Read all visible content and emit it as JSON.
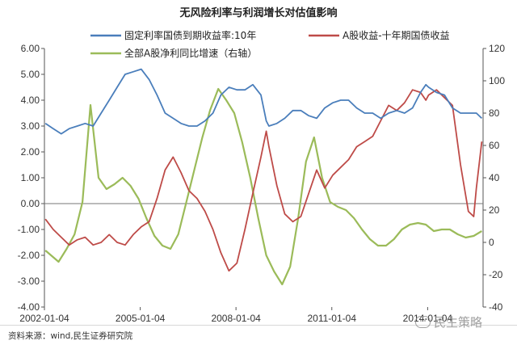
{
  "chart_data": {
    "type": "line",
    "title": "无风险利率与利润增长对估值影响",
    "x_ticks": [
      "2002-01-04",
      "2005-01-04",
      "2008-01-04",
      "2011-01-04",
      "2014-01-04"
    ],
    "xlim": [
      "2002-01-04",
      "2015-09-30"
    ],
    "left_axis": {
      "ylim": [
        -4,
        6
      ],
      "ticks": [
        "6.00",
        "5.00",
        "4.00",
        "3.00",
        "2.00",
        "1.00",
        "0.00",
        "-1.00",
        "-2.00",
        "-3.00",
        "-4.00"
      ]
    },
    "right_axis": {
      "ylim": [
        -40,
        120
      ],
      "ticks": [
        "120",
        "100",
        "80",
        "60",
        "40",
        "20",
        "0",
        "-20",
        "-40"
      ]
    },
    "legend": [
      "固定利率国债到期收益率:10年",
      "A股收益-十年期国债收益",
      "全部A股净利同比增速（右轴）"
    ],
    "series": [
      {
        "name": "固定利率国债到期收益率:10年",
        "axis": "left",
        "color": "#4a7ebb",
        "points": [
          [
            "2002-01",
            3.1
          ],
          [
            "2002-04",
            2.9
          ],
          [
            "2002-07",
            2.7
          ],
          [
            "2002-10",
            2.9
          ],
          [
            "2003-01",
            3.0
          ],
          [
            "2003-04",
            3.1
          ],
          [
            "2003-07",
            3.0
          ],
          [
            "2003-10",
            3.5
          ],
          [
            "2004-01",
            4.0
          ],
          [
            "2004-04",
            4.5
          ],
          [
            "2004-07",
            5.0
          ],
          [
            "2004-10",
            5.1
          ],
          [
            "2005-01",
            5.2
          ],
          [
            "2005-04",
            4.8
          ],
          [
            "2005-07",
            4.2
          ],
          [
            "2005-10",
            3.5
          ],
          [
            "2006-01",
            3.3
          ],
          [
            "2006-04",
            3.1
          ],
          [
            "2006-07",
            3.0
          ],
          [
            "2006-10",
            3.0
          ],
          [
            "2007-01",
            3.2
          ],
          [
            "2007-04",
            3.5
          ],
          [
            "2007-07",
            4.2
          ],
          [
            "2007-10",
            4.5
          ],
          [
            "2008-01",
            4.4
          ],
          [
            "2008-04",
            4.4
          ],
          [
            "2008-07",
            4.6
          ],
          [
            "2008-10",
            4.2
          ],
          [
            "2008-12",
            3.2
          ],
          [
            "2009-01",
            3.0
          ],
          [
            "2009-04",
            3.1
          ],
          [
            "2009-07",
            3.3
          ],
          [
            "2009-10",
            3.6
          ],
          [
            "2010-01",
            3.6
          ],
          [
            "2010-04",
            3.4
          ],
          [
            "2010-07",
            3.3
          ],
          [
            "2010-10",
            3.7
          ],
          [
            "2011-01",
            3.9
          ],
          [
            "2011-04",
            4.0
          ],
          [
            "2011-07",
            4.0
          ],
          [
            "2011-10",
            3.7
          ],
          [
            "2012-01",
            3.5
          ],
          [
            "2012-04",
            3.5
          ],
          [
            "2012-07",
            3.3
          ],
          [
            "2012-10",
            3.5
          ],
          [
            "2013-01",
            3.6
          ],
          [
            "2013-04",
            3.5
          ],
          [
            "2013-07",
            3.7
          ],
          [
            "2013-10",
            4.3
          ],
          [
            "2013-12",
            4.6
          ],
          [
            "2014-01",
            4.5
          ],
          [
            "2014-04",
            4.3
          ],
          [
            "2014-07",
            4.2
          ],
          [
            "2014-10",
            3.7
          ],
          [
            "2015-01",
            3.5
          ],
          [
            "2015-04",
            3.5
          ],
          [
            "2015-07",
            3.5
          ],
          [
            "2015-09",
            3.3
          ]
        ]
      },
      {
        "name": "A股收益-十年期国债收益",
        "axis": "left",
        "color": "#be4b48",
        "points": [
          [
            "2002-01",
            -0.6
          ],
          [
            "2002-04",
            -1.0
          ],
          [
            "2002-07",
            -1.3
          ],
          [
            "2002-10",
            -1.6
          ],
          [
            "2003-01",
            -1.4
          ],
          [
            "2003-04",
            -1.3
          ],
          [
            "2003-07",
            -1.6
          ],
          [
            "2003-10",
            -1.5
          ],
          [
            "2004-01",
            -1.2
          ],
          [
            "2004-04",
            -1.5
          ],
          [
            "2004-07",
            -1.6
          ],
          [
            "2004-10",
            -1.2
          ],
          [
            "2005-01",
            -0.9
          ],
          [
            "2005-04",
            -0.7
          ],
          [
            "2005-07",
            0.2
          ],
          [
            "2005-10",
            1.3
          ],
          [
            "2006-01",
            1.8
          ],
          [
            "2006-04",
            1.2
          ],
          [
            "2006-07",
            0.5
          ],
          [
            "2006-10",
            0.2
          ],
          [
            "2007-01",
            -0.3
          ],
          [
            "2007-04",
            -1.0
          ],
          [
            "2007-07",
            -1.9
          ],
          [
            "2007-10",
            -2.6
          ],
          [
            "2008-01",
            -2.3
          ],
          [
            "2008-04",
            -1.0
          ],
          [
            "2008-07",
            0.4
          ],
          [
            "2008-10",
            1.8
          ],
          [
            "2008-12",
            2.8
          ],
          [
            "2009-01",
            2.2
          ],
          [
            "2009-04",
            0.7
          ],
          [
            "2009-07",
            -0.4
          ],
          [
            "2009-10",
            -0.7
          ],
          [
            "2010-01",
            -0.5
          ],
          [
            "2010-04",
            0.4
          ],
          [
            "2010-07",
            1.3
          ],
          [
            "2010-10",
            0.6
          ],
          [
            "2011-01",
            1.1
          ],
          [
            "2011-04",
            1.4
          ],
          [
            "2011-07",
            1.7
          ],
          [
            "2011-10",
            2.2
          ],
          [
            "2012-01",
            2.4
          ],
          [
            "2012-04",
            2.6
          ],
          [
            "2012-07",
            3.2
          ],
          [
            "2012-10",
            3.8
          ],
          [
            "2013-01",
            3.6
          ],
          [
            "2013-04",
            3.9
          ],
          [
            "2013-07",
            4.4
          ],
          [
            "2013-10",
            4.3
          ],
          [
            "2013-12",
            4.0
          ],
          [
            "2014-01",
            4.2
          ],
          [
            "2014-04",
            4.4
          ],
          [
            "2014-07",
            4.1
          ],
          [
            "2014-10",
            3.8
          ],
          [
            "2015-01",
            1.5
          ],
          [
            "2015-04",
            -0.3
          ],
          [
            "2015-06",
            -0.5
          ],
          [
            "2015-07",
            0.6
          ],
          [
            "2015-09",
            2.4
          ]
        ]
      },
      {
        "name": "全部A股净利同比增速（右轴）",
        "axis": "right",
        "color": "#9bbb59",
        "points": [
          [
            "2002-01",
            -5
          ],
          [
            "2002-06",
            -12
          ],
          [
            "2002-09",
            -4
          ],
          [
            "2002-12",
            5
          ],
          [
            "2003-03",
            25
          ],
          [
            "2003-06",
            85
          ],
          [
            "2003-09",
            40
          ],
          [
            "2003-12",
            33
          ],
          [
            "2004-03",
            36
          ],
          [
            "2004-06",
            40
          ],
          [
            "2004-09",
            35
          ],
          [
            "2004-12",
            27
          ],
          [
            "2005-03",
            15
          ],
          [
            "2005-06",
            4
          ],
          [
            "2005-09",
            -2
          ],
          [
            "2005-12",
            -4
          ],
          [
            "2006-03",
            5
          ],
          [
            "2006-06",
            25
          ],
          [
            "2006-09",
            45
          ],
          [
            "2006-12",
            65
          ],
          [
            "2007-03",
            82
          ],
          [
            "2007-06",
            95
          ],
          [
            "2007-09",
            88
          ],
          [
            "2007-12",
            80
          ],
          [
            "2008-03",
            62
          ],
          [
            "2008-06",
            40
          ],
          [
            "2008-09",
            15
          ],
          [
            "2008-12",
            -8
          ],
          [
            "2009-03",
            -18
          ],
          [
            "2009-06",
            -26
          ],
          [
            "2009-09",
            -15
          ],
          [
            "2009-12",
            15
          ],
          [
            "2010-03",
            50
          ],
          [
            "2010-06",
            65
          ],
          [
            "2010-09",
            40
          ],
          [
            "2010-12",
            25
          ],
          [
            "2011-03",
            22
          ],
          [
            "2011-06",
            20
          ],
          [
            "2011-09",
            15
          ],
          [
            "2011-12",
            8
          ],
          [
            "2012-03",
            2
          ],
          [
            "2012-06",
            -2
          ],
          [
            "2012-09",
            -2
          ],
          [
            "2012-12",
            2
          ],
          [
            "2013-03",
            8
          ],
          [
            "2013-06",
            11
          ],
          [
            "2013-09",
            12
          ],
          [
            "2013-12",
            11
          ],
          [
            "2014-03",
            7
          ],
          [
            "2014-06",
            8
          ],
          [
            "2014-09",
            8
          ],
          [
            "2014-12",
            5
          ],
          [
            "2015-03",
            3
          ],
          [
            "2015-06",
            4
          ],
          [
            "2015-09",
            7
          ]
        ]
      }
    ],
    "grid": false,
    "legend_position": "top"
  },
  "footer": {
    "source": "资料来源：wind,民生证券研究院",
    "watermark": "民生策略",
    "watermark_icon": "wechat-icon"
  }
}
